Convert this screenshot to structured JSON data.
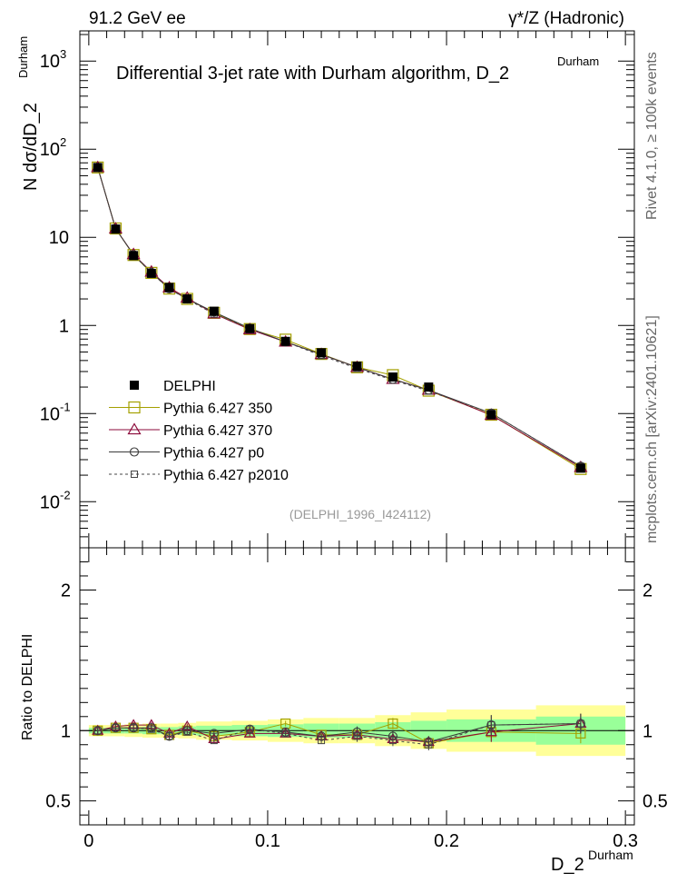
{
  "header": {
    "energy_label": "91.2 GeV ee",
    "process_label": "γ*/Z (Hadronic)"
  },
  "side_labels": {
    "rivet": "Rivet 4.1.0, ≥ 100k events",
    "mcplots": "mcplots.cern.ch [arXiv:2401.10621]"
  },
  "chart_data": [
    {
      "type": "scatter",
      "id": "main",
      "title": "Differential 3-jet rate with Durham algorithm, D_2",
      "title_super": "Durham",
      "ylabel": "N  dσ/dD_2",
      "ylabel_super": "Durham",
      "yscale": "log",
      "ylim": [
        0.003,
        2200
      ],
      "xlim": [
        -0.005,
        0.305
      ],
      "y_ticks": [
        {
          "v": 0.01,
          "base": "10",
          "exp": "-2"
        },
        {
          "v": 0.1,
          "base": "10",
          "exp": "-1"
        },
        {
          "v": 1,
          "base": "1",
          "exp": ""
        },
        {
          "v": 10,
          "base": "10",
          "exp": ""
        },
        {
          "v": 100,
          "base": "10",
          "exp": "2"
        },
        {
          "v": 1000,
          "base": "10",
          "exp": "3"
        }
      ],
      "watermark": "(DELPHI_1996_I424112)",
      "x": [
        0.005,
        0.015,
        0.025,
        0.035,
        0.045,
        0.055,
        0.07,
        0.09,
        0.11,
        0.13,
        0.15,
        0.17,
        0.19,
        0.225,
        0.275
      ],
      "series": [
        {
          "name": "DELPHI",
          "marker": "filled-square",
          "color": "#000000",
          "values": [
            62,
            12.4,
            6.2,
            3.9,
            2.7,
            2.0,
            1.45,
            0.92,
            0.66,
            0.49,
            0.345,
            0.26,
            0.2,
            0.097,
            0.024
          ]
        },
        {
          "name": "Pythia 6.427 350",
          "marker": "open-square",
          "color": "#a4a000",
          "values": [
            62,
            12.6,
            6.3,
            3.95,
            2.62,
            2.0,
            1.39,
            0.91,
            0.69,
            0.475,
            0.335,
            0.273,
            0.182,
            0.097,
            0.0235
          ]
        },
        {
          "name": "Pythia 6.427 370",
          "marker": "open-triangle",
          "color": "#8b0a3a",
          "values": [
            62,
            12.5,
            6.4,
            4.05,
            2.68,
            2.05,
            1.36,
            0.9,
            0.65,
            0.47,
            0.335,
            0.245,
            0.185,
            0.096,
            0.0245
          ]
        },
        {
          "name": "Pythia 6.427 p0",
          "marker": "open-circle",
          "color": "#3a3a3a",
          "values": [
            62,
            12.5,
            6.35,
            4.0,
            2.6,
            2.0,
            1.42,
            0.93,
            0.65,
            0.47,
            0.335,
            0.245,
            0.185,
            0.101,
            0.0252
          ]
        },
        {
          "name": "Pythia 6.427 p2010",
          "marker": "open-square-dashed",
          "color": "#444444",
          "values": [
            62,
            12.6,
            6.3,
            3.95,
            2.6,
            1.98,
            1.35,
            0.93,
            0.65,
            0.455,
            0.325,
            0.24,
            0.18,
            0.101,
            0.0252
          ]
        }
      ]
    },
    {
      "type": "scatter",
      "id": "ratio",
      "ylabel": "Ratio to DELPHI",
      "xlabel": "D_2",
      "xlabel_super": "Durham",
      "ylim": [
        0.33,
        2.3
      ],
      "xlim": [
        -0.005,
        0.305
      ],
      "y_ticks": [
        0.5,
        1,
        2
      ],
      "x_ticks": [
        0,
        0.1,
        0.2,
        0.3
      ],
      "x_tick_labels": [
        "0",
        "0.1",
        "0.2",
        "0.3"
      ],
      "x": [
        0.005,
        0.015,
        0.025,
        0.035,
        0.045,
        0.055,
        0.07,
        0.09,
        0.11,
        0.13,
        0.15,
        0.17,
        0.19,
        0.225,
        0.275
      ],
      "bin_edges": [
        0.0,
        0.01,
        0.02,
        0.03,
        0.04,
        0.05,
        0.06,
        0.08,
        0.1,
        0.12,
        0.14,
        0.16,
        0.18,
        0.2,
        0.25,
        0.3
      ],
      "band_inner": [
        0.02,
        0.02,
        0.02,
        0.025,
        0.025,
        0.03,
        0.035,
        0.04,
        0.045,
        0.05,
        0.05,
        0.06,
        0.07,
        0.08,
        0.1
      ],
      "band_outer": [
        0.04,
        0.04,
        0.045,
        0.05,
        0.05,
        0.055,
        0.065,
        0.07,
        0.08,
        0.09,
        0.09,
        0.11,
        0.13,
        0.15,
        0.18
      ],
      "series": [
        {
          "name": "Pythia 6.427 350",
          "marker": "open-square",
          "color": "#a4a000",
          "values": [
            1.0,
            1.02,
            1.02,
            1.01,
            0.97,
            1.0,
            0.96,
            0.99,
            1.05,
            0.97,
            0.97,
            1.05,
            0.91,
            0.99,
            0.98
          ]
        },
        {
          "name": "Pythia 6.427 370",
          "marker": "open-triangle",
          "color": "#8b0a3a",
          "values": [
            1.0,
            1.03,
            1.04,
            1.04,
            0.98,
            1.03,
            0.94,
            0.98,
            0.98,
            0.96,
            0.97,
            0.94,
            0.92,
            0.99,
            1.05
          ]
        },
        {
          "name": "Pythia 6.427 p0",
          "marker": "open-circle",
          "color": "#3a3a3a",
          "values": [
            1.0,
            1.02,
            1.02,
            1.02,
            0.96,
            1.0,
            0.98,
            1.01,
            0.99,
            0.96,
            0.99,
            0.96,
            0.92,
            1.04,
            1.05
          ]
        },
        {
          "name": "Pythia 6.427 p2010",
          "marker": "open-square-dashed",
          "color": "#444444",
          "values": [
            1.0,
            1.02,
            1.02,
            1.01,
            0.96,
            0.99,
            0.93,
            1.01,
            0.98,
            0.93,
            0.96,
            0.93,
            0.9,
            1.04,
            1.05
          ]
        }
      ]
    }
  ]
}
